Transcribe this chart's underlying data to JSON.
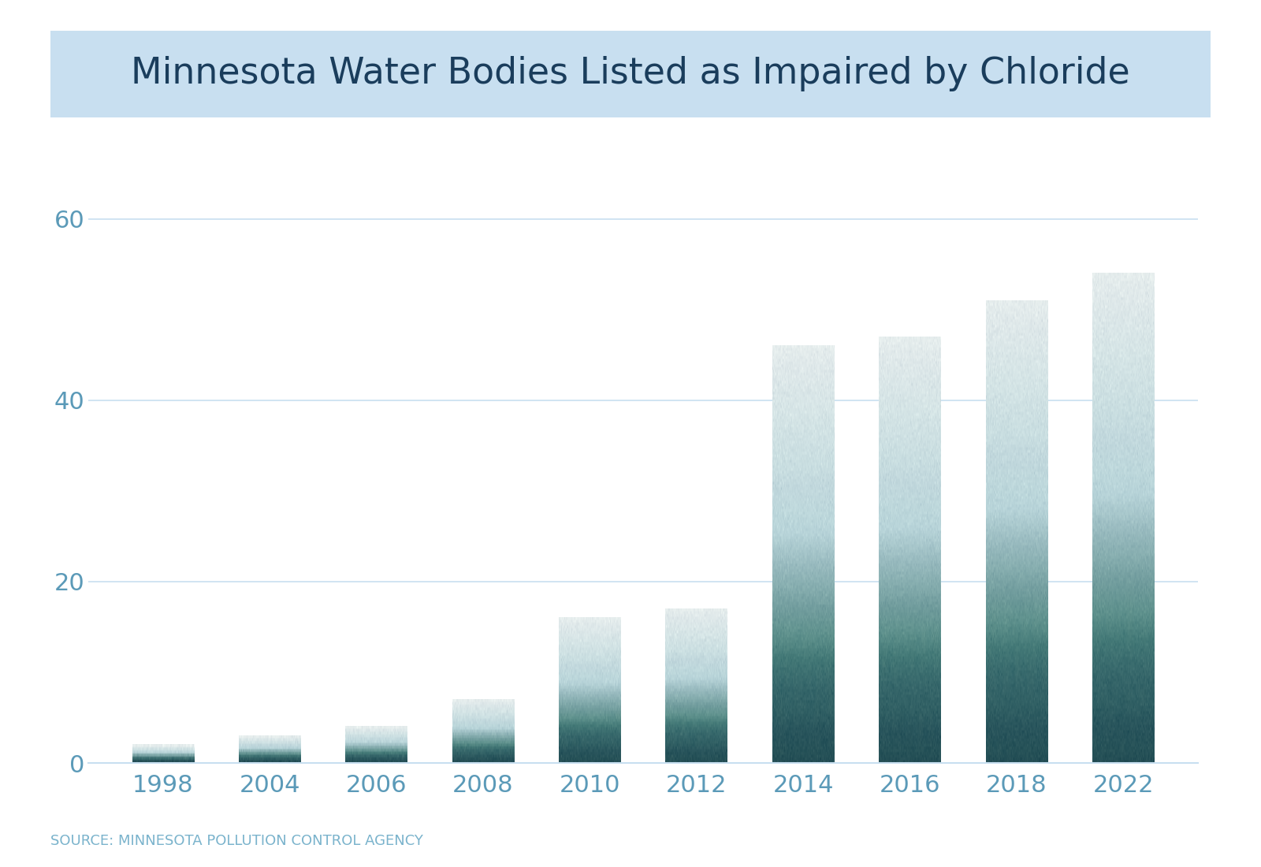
{
  "title": "Minnesota Water Bodies Listed as Impaired by Chloride",
  "categories": [
    "1998",
    "2004",
    "2006",
    "2008",
    "2010",
    "2012",
    "2014",
    "2016",
    "2018",
    "2022"
  ],
  "values": [
    2,
    3,
    4,
    7,
    16,
    17,
    46,
    47,
    51,
    54
  ],
  "yticks": [
    0,
    20,
    40,
    60
  ],
  "ylim": [
    0,
    65
  ],
  "background_color": "#ffffff",
  "title_bg_color": "#c8dff0",
  "title_text_color": "#1a3d5c",
  "axis_text_color": "#5b9ab8",
  "grid_color": "#c8dff0",
  "source_text": "SOURCE: MINNESOTA POLLUTION CONTROL AGENCY",
  "source_text_color": "#7ab3cc"
}
